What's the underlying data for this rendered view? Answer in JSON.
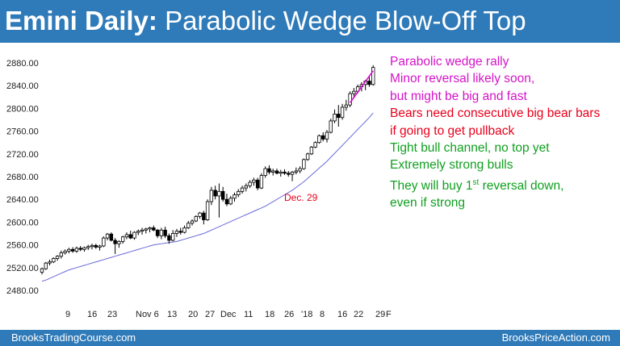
{
  "header": {
    "title_bold": "Emini Daily:",
    "title_rest": "Parabolic Wedge Blow-Off Top"
  },
  "footer": {
    "left": "BrooksTradingCourse.com",
    "right": "BrooksPriceAction.com"
  },
  "notes": [
    {
      "text": "Parabolic wedge rally",
      "color": "#d414c8"
    },
    {
      "text": "Minor reversal likely soon,",
      "color": "#d414c8"
    },
    {
      "text": "but might be big and fast",
      "color": "#d414c8"
    },
    {
      "text": "Bears need consecutive big bear bars",
      "color": "#e8001c"
    },
    {
      "text": "if going to get pullback",
      "color": "#e8001c"
    },
    {
      "text": "Tight bull channel, no top yet",
      "color": "#10a020"
    },
    {
      "text": "Extremely strong bulls",
      "color": "#10a020"
    },
    {
      "text": "They will buy 1st reversal down,",
      "sup": "st",
      "color": "#10a020"
    },
    {
      "text": "even if strong",
      "color": "#10a020"
    }
  ],
  "chart_data": {
    "type": "candlestick",
    "title": "",
    "ylim": [
      2480,
      2890
    ],
    "y_ticks": [
      "2480.00",
      "2520.00",
      "2560.00",
      "2600.00",
      "2640.00",
      "2680.00",
      "2720.00",
      "2760.00",
      "2800.00",
      "2840.00",
      "2880.00"
    ],
    "x_ticks": [
      "9",
      "16",
      "23",
      "Nov 6",
      "13",
      "20",
      "27",
      "Dec",
      "11",
      "18",
      "26",
      "'18",
      "8",
      "16",
      "22",
      "29",
      "F"
    ],
    "annotation": {
      "text": "Dec. 29",
      "color": "#e8001c"
    },
    "ma_color": "#6a6adc",
    "wedge_line_color": "#d414c8",
    "candles": [
      [
        2512,
        2520,
        2508,
        2518
      ],
      [
        2518,
        2530,
        2516,
        2528
      ],
      [
        2528,
        2534,
        2524,
        2530
      ],
      [
        2530,
        2538,
        2528,
        2536
      ],
      [
        2536,
        2542,
        2532,
        2540
      ],
      [
        2540,
        2550,
        2536,
        2546
      ],
      [
        2546,
        2552,
        2543,
        2549
      ],
      [
        2549,
        2555,
        2545,
        2552
      ],
      [
        2552,
        2556,
        2546,
        2549
      ],
      [
        2549,
        2557,
        2546,
        2554
      ],
      [
        2554,
        2558,
        2549,
        2552
      ],
      [
        2552,
        2557,
        2548,
        2555
      ],
      [
        2555,
        2560,
        2551,
        2557
      ],
      [
        2557,
        2562,
        2552,
        2559
      ],
      [
        2559,
        2562,
        2553,
        2556
      ],
      [
        2556,
        2560,
        2550,
        2558
      ],
      [
        2558,
        2575,
        2556,
        2572
      ],
      [
        2572,
        2581,
        2568,
        2579
      ],
      [
        2579,
        2582,
        2566,
        2568
      ],
      [
        2568,
        2572,
        2544,
        2562
      ],
      [
        2562,
        2568,
        2555,
        2566
      ],
      [
        2566,
        2576,
        2562,
        2574
      ],
      [
        2574,
        2582,
        2570,
        2578
      ],
      [
        2578,
        2585,
        2570,
        2572
      ],
      [
        2572,
        2584,
        2569,
        2582
      ],
      [
        2582,
        2587,
        2577,
        2584
      ],
      [
        2584,
        2590,
        2578,
        2586
      ],
      [
        2586,
        2590,
        2580,
        2588
      ],
      [
        2588,
        2592,
        2582,
        2590
      ],
      [
        2590,
        2594,
        2584,
        2586
      ],
      [
        2586,
        2588,
        2572,
        2576
      ],
      [
        2576,
        2590,
        2570,
        2586
      ],
      [
        2586,
        2592,
        2572,
        2576
      ],
      [
        2576,
        2580,
        2562,
        2568
      ],
      [
        2568,
        2586,
        2566,
        2580
      ],
      [
        2580,
        2588,
        2574,
        2584
      ],
      [
        2584,
        2590,
        2578,
        2582
      ],
      [
        2582,
        2594,
        2580,
        2590
      ],
      [
        2590,
        2602,
        2588,
        2598
      ],
      [
        2598,
        2605,
        2594,
        2602
      ],
      [
        2602,
        2612,
        2600,
        2610
      ],
      [
        2610,
        2618,
        2606,
        2616
      ],
      [
        2616,
        2620,
        2596,
        2604
      ],
      [
        2604,
        2640,
        2602,
        2636
      ],
      [
        2636,
        2662,
        2630,
        2656
      ],
      [
        2656,
        2664,
        2640,
        2646
      ],
      [
        2646,
        2668,
        2608,
        2654
      ],
      [
        2654,
        2662,
        2636,
        2640
      ],
      [
        2640,
        2650,
        2628,
        2632
      ],
      [
        2632,
        2646,
        2630,
        2642
      ],
      [
        2642,
        2652,
        2636,
        2648
      ],
      [
        2648,
        2658,
        2644,
        2654
      ],
      [
        2654,
        2664,
        2650,
        2660
      ],
      [
        2660,
        2668,
        2654,
        2664
      ],
      [
        2664,
        2674,
        2660,
        2670
      ],
      [
        2670,
        2678,
        2664,
        2674
      ],
      [
        2674,
        2678,
        2656,
        2660
      ],
      [
        2660,
        2686,
        2658,
        2682
      ],
      [
        2682,
        2698,
        2678,
        2694
      ],
      [
        2694,
        2700,
        2684,
        2688
      ],
      [
        2688,
        2694,
        2682,
        2690
      ],
      [
        2690,
        2694,
        2684,
        2686
      ],
      [
        2686,
        2692,
        2680,
        2688
      ],
      [
        2688,
        2693,
        2683,
        2686
      ],
      [
        2686,
        2690,
        2680,
        2684
      ],
      [
        2684,
        2690,
        2672,
        2688
      ],
      [
        2688,
        2696,
        2684,
        2690
      ],
      [
        2690,
        2698,
        2686,
        2694
      ],
      [
        2694,
        2712,
        2692,
        2710
      ],
      [
        2710,
        2722,
        2708,
        2720
      ],
      [
        2720,
        2734,
        2718,
        2732
      ],
      [
        2732,
        2742,
        2730,
        2740
      ],
      [
        2740,
        2754,
        2738,
        2752
      ],
      [
        2752,
        2758,
        2742,
        2746
      ],
      [
        2746,
        2762,
        2740,
        2758
      ],
      [
        2758,
        2782,
        2756,
        2778
      ],
      [
        2778,
        2798,
        2774,
        2790
      ],
      [
        2790,
        2806,
        2768,
        2784
      ],
      [
        2784,
        2808,
        2780,
        2802
      ],
      [
        2802,
        2815,
        2796,
        2806
      ],
      [
        2806,
        2830,
        2802,
        2826
      ],
      [
        2826,
        2836,
        2818,
        2830
      ],
      [
        2830,
        2842,
        2826,
        2838
      ],
      [
        2838,
        2846,
        2830,
        2842
      ],
      [
        2842,
        2850,
        2832,
        2848
      ],
      [
        2848,
        2856,
        2838,
        2842
      ],
      [
        2842,
        2876,
        2840,
        2872
      ]
    ],
    "ma_values": [
      2496,
      2498,
      2501,
      2504,
      2507,
      2510,
      2513,
      2516,
      2518,
      2520,
      2522,
      2524,
      2526,
      2528,
      2530,
      2532,
      2534,
      2536,
      2538,
      2540,
      2542,
      2544,
      2546,
      2548,
      2550,
      2552,
      2554,
      2556,
      2558,
      2560,
      2561,
      2562,
      2563,
      2564,
      2565,
      2566,
      2568,
      2570,
      2572,
      2574,
      2576,
      2578,
      2580,
      2583,
      2586,
      2589,
      2592,
      2595,
      2598,
      2601,
      2604,
      2607,
      2610,
      2613,
      2616,
      2619,
      2622,
      2625,
      2628,
      2632,
      2636,
      2640,
      2644,
      2648,
      2652,
      2656,
      2661,
      2666,
      2671,
      2677,
      2683,
      2689,
      2695,
      2701,
      2707,
      2714,
      2721,
      2728,
      2735,
      2742,
      2749,
      2756,
      2763,
      2770,
      2777,
      2784,
      2792
    ],
    "wedge_line": [
      [
        80,
        2810
      ],
      [
        86,
        2866
      ]
    ]
  }
}
